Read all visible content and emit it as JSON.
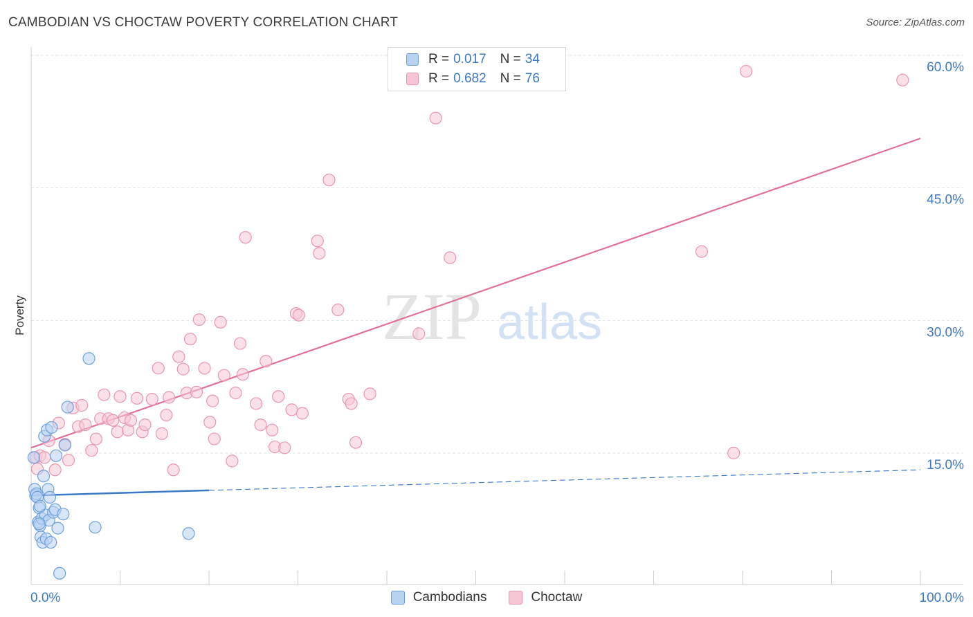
{
  "header": {
    "title": "CAMBODIAN VS CHOCTAW POVERTY CORRELATION CHART",
    "source": "Source: ZipAtlas.com"
  },
  "watermark": {
    "zip": "ZIP",
    "atlas": "atlas"
  },
  "legend_top": [
    {
      "r_label": "R =",
      "r_value": "0.017",
      "n_label": "N =",
      "n_value": "34"
    },
    {
      "r_label": "R =",
      "r_value": "0.682",
      "n_label": "N =",
      "n_value": "76"
    }
  ],
  "legend_bottom": [
    "Cambodians",
    "Choctaw"
  ],
  "colors": {
    "cambodians_fill": "#b8d2f2",
    "cambodians_stroke": "#6fa0dc",
    "cambodians_line": "#3a78c9",
    "choctaw_fill": "#f7c6d5",
    "choctaw_stroke": "#e896b2",
    "choctaw_line": "#e0709a",
    "tick_label": "#3c78c8",
    "grid": "#e2e2e2"
  },
  "chart_data": {
    "type": "scatter",
    "title": "CAMBODIAN VS CHOCTAW POVERTY CORRELATION CHART",
    "xlabel": "",
    "ylabel": "Poverty",
    "xlim": [
      0,
      100
    ],
    "ylim": [
      0,
      60
    ],
    "x_tick_labels": [
      "0.0%",
      "100.0%"
    ],
    "y_ticks": [
      15,
      30,
      45,
      60
    ],
    "y_tick_labels": [
      "15.0%",
      "30.0%",
      "45.0%",
      "60.0%"
    ],
    "grid": "horizontal dashed",
    "legend": "top-center and bottom",
    "series": [
      {
        "name": "Cambodians",
        "r": 0.017,
        "n": 34,
        "trend": {
          "x0": 0,
          "y0": 10.2,
          "x1": 100,
          "y1": 13.1,
          "solid_until": 20
        },
        "points": [
          [
            0.3,
            14.5
          ],
          [
            0.4,
            10.9
          ],
          [
            0.5,
            10.2
          ],
          [
            0.6,
            10.4
          ],
          [
            0.7,
            10.0
          ],
          [
            0.8,
            7.2
          ],
          [
            0.9,
            8.8
          ],
          [
            1.0,
            6.8
          ],
          [
            1.1,
            5.5
          ],
          [
            1.2,
            7.6
          ],
          [
            1.3,
            4.9
          ],
          [
            1.4,
            12.4
          ],
          [
            1.5,
            16.9
          ],
          [
            1.6,
            8.0
          ],
          [
            1.7,
            5.3
          ],
          [
            1.8,
            17.6
          ],
          [
            1.9,
            10.9
          ],
          [
            2.0,
            7.4
          ],
          [
            2.1,
            10.0
          ],
          [
            2.2,
            4.9
          ],
          [
            2.3,
            17.9
          ],
          [
            2.5,
            8.3
          ],
          [
            2.7,
            8.6
          ],
          [
            2.8,
            14.7
          ],
          [
            3.0,
            6.5
          ],
          [
            3.2,
            1.4
          ],
          [
            3.6,
            8.1
          ],
          [
            3.8,
            15.9
          ],
          [
            4.1,
            20.2
          ],
          [
            6.5,
            25.7
          ],
          [
            7.2,
            6.6
          ],
          [
            17.7,
            5.9
          ],
          [
            1.0,
            9.0
          ],
          [
            0.9,
            7.0
          ]
        ]
      },
      {
        "name": "Choctaw",
        "r": 0.682,
        "n": 76,
        "trend": {
          "x0": 0,
          "y0": 15.6,
          "x1": 100,
          "y1": 50.6
        },
        "points": [
          [
            0.5,
            14.5
          ],
          [
            0.7,
            13.2
          ],
          [
            1.0,
            14.7
          ],
          [
            1.5,
            14.5
          ],
          [
            2.0,
            16.4
          ],
          [
            2.7,
            13.1
          ],
          [
            3.1,
            18.4
          ],
          [
            3.8,
            16.0
          ],
          [
            4.2,
            14.2
          ],
          [
            4.7,
            20.1
          ],
          [
            5.3,
            18.0
          ],
          [
            5.7,
            20.4
          ],
          [
            6.1,
            18.2
          ],
          [
            6.8,
            15.3
          ],
          [
            7.3,
            16.6
          ],
          [
            7.8,
            18.9
          ],
          [
            8.2,
            21.6
          ],
          [
            8.7,
            18.9
          ],
          [
            9.2,
            18.7
          ],
          [
            9.7,
            17.4
          ],
          [
            10.0,
            21.4
          ],
          [
            10.5,
            19.0
          ],
          [
            10.9,
            17.6
          ],
          [
            11.2,
            18.7
          ],
          [
            11.9,
            21.2
          ],
          [
            12.5,
            17.4
          ],
          [
            12.8,
            18.2
          ],
          [
            13.6,
            21.1
          ],
          [
            14.3,
            24.6
          ],
          [
            14.7,
            17.2
          ],
          [
            15.2,
            19.3
          ],
          [
            15.5,
            21.3
          ],
          [
            16.0,
            13.1
          ],
          [
            16.6,
            25.9
          ],
          [
            17.1,
            24.5
          ],
          [
            17.5,
            21.8
          ],
          [
            17.9,
            27.9
          ],
          [
            18.6,
            21.9
          ],
          [
            18.9,
            30.1
          ],
          [
            19.5,
            24.6
          ],
          [
            20.1,
            18.5
          ],
          [
            20.4,
            20.9
          ],
          [
            20.6,
            16.6
          ],
          [
            21.3,
            29.8
          ],
          [
            21.7,
            23.8
          ],
          [
            22.6,
            14.1
          ],
          [
            23.0,
            21.8
          ],
          [
            23.5,
            27.4
          ],
          [
            23.8,
            23.9
          ],
          [
            24.1,
            39.4
          ],
          [
            25.3,
            20.6
          ],
          [
            25.8,
            18.2
          ],
          [
            26.4,
            25.4
          ],
          [
            27.1,
            17.6
          ],
          [
            27.4,
            15.7
          ],
          [
            27.8,
            21.4
          ],
          [
            28.5,
            15.6
          ],
          [
            29.3,
            19.9
          ],
          [
            29.8,
            30.8
          ],
          [
            30.1,
            30.6
          ],
          [
            30.5,
            19.5
          ],
          [
            32.2,
            39.0
          ],
          [
            32.4,
            37.6
          ],
          [
            33.5,
            45.9
          ],
          [
            34.5,
            31.2
          ],
          [
            35.7,
            21.1
          ],
          [
            36.0,
            20.6
          ],
          [
            36.5,
            16.2
          ],
          [
            38.1,
            21.7
          ],
          [
            43.6,
            28.5
          ],
          [
            45.5,
            52.9
          ],
          [
            47.1,
            37.1
          ],
          [
            75.4,
            37.8
          ],
          [
            79.0,
            15.0
          ],
          [
            80.4,
            58.2
          ],
          [
            98.0,
            57.2
          ]
        ]
      }
    ]
  }
}
